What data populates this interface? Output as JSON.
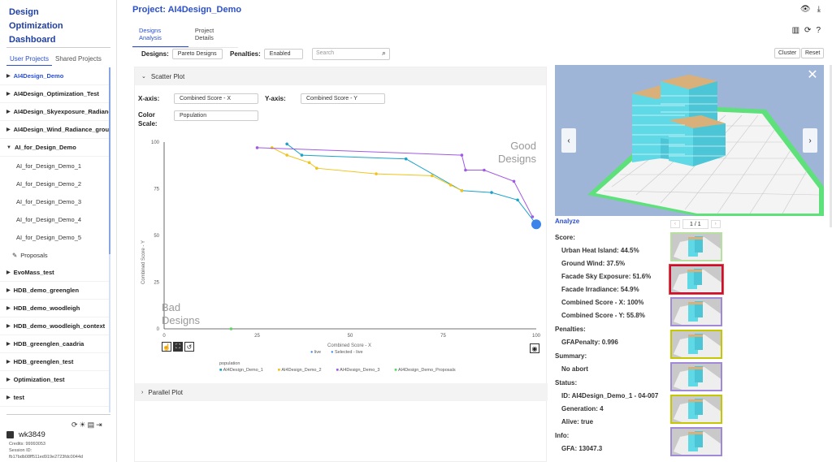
{
  "app": {
    "title_line1": "Design",
    "title_line2": "Optimization",
    "title_line3": "Dashboard"
  },
  "sidebar": {
    "tabs": [
      "User Projects",
      "Shared Projects"
    ],
    "projects": [
      {
        "label": "AI4Design_Demo",
        "active": true
      },
      {
        "label": "AI4Design_Optimization_Test"
      },
      {
        "label": "AI4Design_Skyexposure_Radiance"
      },
      {
        "label": "AI4Design_Wind_Radiance_group"
      },
      {
        "label": "AI_for_Design_Demo",
        "expanded": true
      }
    ],
    "subitems": [
      "AI_for_Design_Demo_1",
      "AI_for_Design_Demo_2",
      "AI_for_Design_Demo_3",
      "AI_for_Design_Demo_4",
      "AI_for_Design_Demo_5"
    ],
    "proposals": "Proposals",
    "projects2": [
      "EvoMass_test",
      "HDB_demo_greenglen",
      "HDB_demo_woodleigh",
      "HDB_demo_woodleigh_context",
      "HDB_greenglen_caadria",
      "HDB_greenglen_test",
      "Optimization_test",
      "test"
    ]
  },
  "user": {
    "name": "wk3849",
    "credits": "Credits: 99993053",
    "session_label": "Session ID:",
    "session_id": "fb17bdb08ff511ed919e2723fdc0044d"
  },
  "header": {
    "project_title": "Project: AI4Design_Demo",
    "tabs": [
      "Designs Analysis",
      "Project Details"
    ]
  },
  "controls": {
    "designs_label": "Designs:",
    "designs_value": "Pareto Designs",
    "penalties_label": "Penalties:",
    "penalties_value": "Enabled",
    "search_placeholder": "Search",
    "cluster": "Cluster",
    "reset": "Reset"
  },
  "scatter": {
    "panel_title": "Scatter Plot",
    "x_axis_label": "X-axis:",
    "x_axis_value": "Combined Score - X",
    "y_axis_label": "Y-axis:",
    "y_axis_value": "Combined Score - Y",
    "color_scale_label_1": "Color",
    "color_scale_label_2": "Scale:",
    "color_scale_value": "Population"
  },
  "parallel": {
    "panel_title": "Parallel Plot"
  },
  "chart_data": {
    "type": "line",
    "xlabel": "Combined Score - X",
    "ylabel": "Combined Score - Y",
    "xlim": [
      0,
      100
    ],
    "ylim": [
      0,
      100
    ],
    "xticks": [
      "0",
      "25",
      "50",
      "75",
      "100"
    ],
    "yticks": [
      "0",
      "25",
      "50",
      "75",
      "100"
    ],
    "corner_good_1": "Good",
    "corner_good_2": "Designs",
    "corner_bad_1": "Bad",
    "corner_bad_2": "Designs",
    "markers_legend": [
      "live",
      "Selected - live"
    ],
    "legend_title": "population",
    "colors": {
      "demo1": "#1aa3c8",
      "demo2": "#f0c419",
      "demo3": "#a259e6",
      "proposals": "#5bd46a",
      "selected": "#3b84ea"
    },
    "series": [
      {
        "name": "AI4Design_Demo_1",
        "color": "#1aa3c8",
        "points": [
          [
            33,
            99
          ],
          [
            37,
            93
          ],
          [
            65,
            91
          ],
          [
            80,
            74
          ],
          [
            88,
            73
          ],
          [
            95,
            69
          ],
          [
            100,
            56
          ]
        ]
      },
      {
        "name": "AI4Design_Demo_2",
        "color": "#f0c419",
        "points": [
          [
            29,
            97
          ],
          [
            33,
            93
          ],
          [
            39,
            89
          ],
          [
            41,
            86
          ],
          [
            57,
            83
          ],
          [
            72,
            82
          ],
          [
            77,
            77
          ],
          [
            80,
            74
          ]
        ]
      },
      {
        "name": "AI4Design_Demo_3",
        "color": "#a259e6",
        "points": [
          [
            25,
            97
          ],
          [
            80,
            93
          ],
          [
            81,
            85
          ],
          [
            86,
            85
          ],
          [
            94,
            79
          ],
          [
            99,
            60
          ]
        ]
      },
      {
        "name": "AI4Design_Demo_Proposals",
        "color": "#5bd46a",
        "points": [
          [
            18,
            0
          ]
        ]
      }
    ],
    "selected_point": [
      100,
      56
    ]
  },
  "analyze": {
    "title": "Analyze",
    "page": "1 / 1",
    "score_label": "Score:",
    "scores": [
      "Urban Heat Island: 44.5%",
      "Ground Wind: 37.5%",
      "Facade Sky Exposure: 51.6%",
      "Facade Irradiance: 54.9%",
      "Combined Score - X: 100%",
      "Combined Score - Y: 55.8%"
    ],
    "penalties_label": "Penalties:",
    "penalties": [
      "GFAPenalty: 0.996"
    ],
    "summary_label": "Summary:",
    "summary": [
      "No abort"
    ],
    "status_label": "Status:",
    "status": [
      "ID: AI4Design_Demo_1 - 04-007",
      "Generation: 4",
      "Alive: true"
    ],
    "info_label": "Info:",
    "info": [
      "GFA: 13047.3"
    ]
  }
}
